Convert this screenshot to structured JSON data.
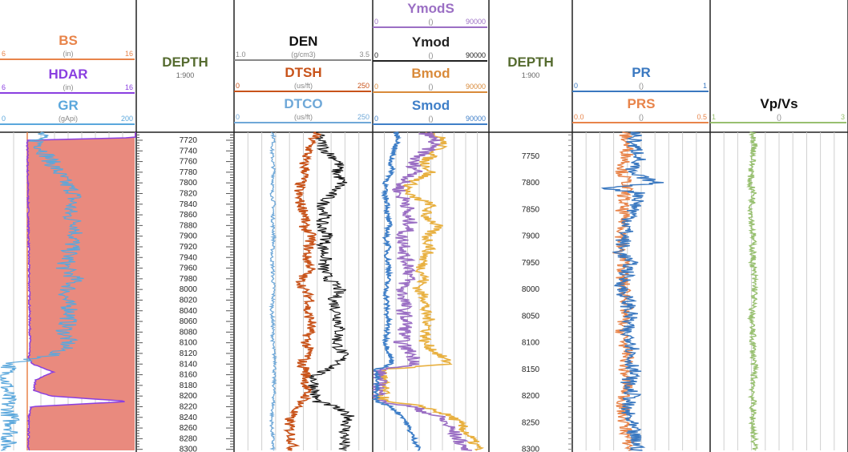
{
  "colors": {
    "bs": "#e8844a",
    "hdar": "#8a3fe0",
    "gr": "#5aa7dc",
    "den": "#111111",
    "dtsh": "#c8531a",
    "dtco": "#6fa8d8",
    "ymods": "#9b6fc4",
    "ymod": "#222222",
    "bmod": "#e8b040",
    "bmod_curve": "#d98a3a",
    "smod": "#3f7fc8",
    "depth": "#556b2f",
    "pr": "#3a78c0",
    "prs": "#e8844a",
    "vpvs": "#98c070",
    "fill": "#e98a7e"
  },
  "chart_data": {
    "type": "line",
    "title": "",
    "tracks": [
      {
        "id": "track1",
        "curves": [
          {
            "name": "BS",
            "unit": "(in)",
            "min": "6",
            "max": "16"
          },
          {
            "name": "HDAR",
            "unit": "(in)",
            "min": "6",
            "max": "16"
          },
          {
            "name": "GR",
            "unit": "(gApi)",
            "min": "0",
            "max": "200"
          }
        ]
      },
      {
        "id": "depth1",
        "label": "DEPTH",
        "scale": "1:900",
        "ticks": [
          7720,
          7740,
          7760,
          7780,
          7800,
          7820,
          7840,
          7860,
          7880,
          7900,
          7920,
          7940,
          7960,
          7980,
          8000,
          8020,
          8040,
          8060,
          8080,
          8100,
          8120,
          8140,
          8160,
          8180,
          8200,
          8220,
          8240,
          8260,
          8280,
          8300
        ]
      },
      {
        "id": "track3",
        "curves": [
          {
            "name": "DEN",
            "unit": "(g/cm3)",
            "min": "1.0",
            "max": "3.5"
          },
          {
            "name": "DTSH",
            "unit": "(us/ft)",
            "min": "0",
            "max": "250"
          },
          {
            "name": "DTCO",
            "unit": "(us/ft)",
            "min": "0",
            "max": "250"
          }
        ]
      },
      {
        "id": "track4",
        "curves": [
          {
            "name": "YmodS",
            "unit": "()",
            "min": "0",
            "max": "90000"
          },
          {
            "name": "Ymod",
            "unit": "()",
            "min": "0",
            "max": "90000"
          },
          {
            "name": "Bmod",
            "unit": "()",
            "min": "0",
            "max": "90000"
          },
          {
            "name": "Smod",
            "unit": "()",
            "min": "0",
            "max": "90000"
          }
        ]
      },
      {
        "id": "depth2",
        "label": "DEPTH",
        "scale": "1:900",
        "ticks": [
          7750,
          7800,
          7850,
          7900,
          7950,
          8000,
          8050,
          8100,
          8150,
          8200,
          8250,
          8300
        ]
      },
      {
        "id": "track6",
        "curves": [
          {
            "name": "PR",
            "unit": "()",
            "min": "0",
            "max": "1"
          },
          {
            "name": "PRS",
            "unit": "()",
            "min": "0.0",
            "max": "0.5"
          }
        ]
      },
      {
        "id": "track7",
        "curves": [
          {
            "name": "Vp/Vs",
            "unit": "()",
            "min": "1",
            "max": "3"
          }
        ]
      }
    ],
    "depth_range": [
      7705,
      8302
    ],
    "series": [
      {
        "name": "GR",
        "depth": [
          7705,
          7720,
          7740,
          7760,
          7780,
          7800,
          7820,
          7840,
          7860,
          7880,
          7900,
          7920,
          7940,
          7960,
          7980,
          8000,
          8020,
          8040,
          8060,
          8080,
          8100,
          8115,
          8125,
          8140,
          8160,
          8180,
          8200,
          8220,
          8240,
          8260,
          8280,
          8300
        ],
        "values": [
          60,
          55,
          65,
          75,
          85,
          95,
          110,
          105,
          100,
          115,
          110,
          105,
          100,
          95,
          110,
          100,
          95,
          105,
          100,
          95,
          100,
          90,
          70,
          15,
          8,
          10,
          10,
          12,
          15,
          20,
          12,
          10
        ]
      },
      {
        "name": "HDAR",
        "depth": [
          7705,
          7715,
          7720,
          8100,
          8130,
          8140,
          8155,
          8170,
          8190,
          8200,
          8210,
          8220,
          8240,
          8300
        ],
        "values": [
          16,
          16,
          8.0,
          8.2,
          8.1,
          8.4,
          9.9,
          8.6,
          8.5,
          9.8,
          15.5,
          8.3,
          8.1,
          8.1
        ]
      },
      {
        "name": "DEN",
        "depth": [
          7705,
          7720,
          7740,
          7760,
          7780,
          7800,
          7820,
          7840,
          7860,
          7880,
          7900,
          7920,
          7940,
          7960,
          7980,
          8000,
          8020,
          8040,
          8060,
          8080,
          8100,
          8120,
          8140,
          8150,
          8160,
          8180,
          8200,
          8210,
          8220,
          8240,
          8260,
          8280,
          8300
        ],
        "values": [
          2.5,
          2.55,
          2.65,
          2.9,
          2.85,
          2.95,
          2.75,
          2.6,
          2.65,
          2.55,
          2.7,
          2.6,
          2.65,
          2.6,
          2.7,
          2.9,
          2.8,
          2.85,
          2.9,
          2.9,
          2.85,
          2.95,
          2.9,
          2.7,
          2.45,
          2.45,
          2.45,
          2.5,
          2.8,
          3.1,
          3.0,
          3.0,
          2.95
        ]
      },
      {
        "name": "DTSH",
        "depth": [
          7705,
          7720,
          7740,
          7760,
          7780,
          7800,
          7820,
          7840,
          7860,
          7880,
          7900,
          7920,
          7940,
          7960,
          7980,
          8000,
          8020,
          8040,
          8060,
          8080,
          8100,
          8120,
          8140,
          8150,
          8160,
          8180,
          8200,
          8210,
          8220,
          8240,
          8260,
          8280,
          8300
        ],
        "values": [
          150,
          140,
          135,
          125,
          130,
          120,
          115,
          120,
          130,
          125,
          140,
          135,
          130,
          140,
          120,
          125,
          140,
          130,
          140,
          135,
          130,
          135,
          120,
          130,
          130,
          130,
          130,
          125,
          115,
          100,
          100,
          105,
          105
        ]
      },
      {
        "name": "DTCO",
        "depth": [
          7705,
          7720,
          7740,
          7760,
          7780,
          7800,
          7820,
          7840,
          7860,
          7880,
          7900,
          7920,
          7940,
          7960,
          7980,
          8000,
          8020,
          8040,
          8060,
          8080,
          8100,
          8120,
          8140,
          8160,
          8180,
          8200,
          8220,
          8240,
          8260,
          8280,
          8300
        ],
        "values": [
          70,
          72,
          68,
          70,
          72,
          70,
          68,
          72,
          70,
          70,
          72,
          70,
          68,
          70,
          70,
          72,
          70,
          68,
          70,
          70,
          70,
          72,
          75,
          72,
          72,
          72,
          70,
          68,
          68,
          70,
          70
        ]
      },
      {
        "name": "YmodS",
        "depth": [
          7705,
          7720,
          7740,
          7760,
          7780,
          7800,
          7820,
          7840,
          7860,
          7880,
          7900,
          7920,
          7940,
          7960,
          7980,
          8000,
          8020,
          8040,
          8060,
          8080,
          8100,
          8120,
          8140,
          8150,
          8200,
          8210,
          8220,
          8240,
          8260,
          8280,
          8300
        ],
        "values": [
          40000,
          48000,
          42000,
          30000,
          35000,
          22000,
          20000,
          28000,
          25000,
          30000,
          22000,
          26000,
          24000,
          30000,
          28000,
          22000,
          25000,
          24000,
          26000,
          25000,
          22000,
          30000,
          35000,
          5000,
          5000,
          5000,
          30000,
          52000,
          60000,
          66000,
          72000
        ]
      },
      {
        "name": "Bmod",
        "depth": [
          7705,
          7720,
          7740,
          7760,
          7780,
          7800,
          7820,
          7840,
          7860,
          7880,
          7900,
          7920,
          7940,
          7960,
          7980,
          8000,
          8020,
          8040,
          8060,
          8080,
          8100,
          8120,
          8140,
          8150,
          8200,
          8210,
          8220,
          8240,
          8260,
          8280,
          8300
        ],
        "values": [
          45000,
          55000,
          50000,
          40000,
          45000,
          30000,
          25000,
          45000,
          40000,
          50000,
          42000,
          45000,
          40000,
          38000,
          40000,
          35000,
          42000,
          40000,
          44000,
          42000,
          40000,
          50000,
          60000,
          8000,
          8000,
          8000,
          40000,
          62000,
          70000,
          76000,
          82000
        ]
      },
      {
        "name": "Smod",
        "depth": [
          7705,
          7720,
          7740,
          7760,
          7780,
          7800,
          7820,
          7840,
          7860,
          7880,
          7900,
          7920,
          7940,
          7960,
          7980,
          8000,
          8020,
          8040,
          8060,
          8080,
          8100,
          8120,
          8140,
          8150,
          8200,
          8210,
          8220,
          8240,
          8260,
          8280,
          8300
        ],
        "values": [
          18000,
          20000,
          16000,
          14000,
          15000,
          10000,
          9000,
          12000,
          11000,
          13000,
          10000,
          12000,
          11000,
          13000,
          12000,
          10000,
          11000,
          11000,
          12000,
          11000,
          10000,
          13000,
          15000,
          3000,
          3000,
          3000,
          14000,
          24000,
          28000,
          32000,
          36000
        ]
      },
      {
        "name": "PR",
        "depth": [
          7705,
          7730,
          7750,
          7780,
          7800,
          7810,
          7820,
          7850,
          7880,
          7900,
          7930,
          7950,
          7980,
          8000,
          8020,
          8050,
          8080,
          8100,
          8130,
          8150,
          8180,
          8200,
          8220,
          8250,
          8280,
          8300
        ],
        "values": [
          0.46,
          0.44,
          0.5,
          0.4,
          0.62,
          0.25,
          0.5,
          0.45,
          0.4,
          0.38,
          0.35,
          0.42,
          0.38,
          0.36,
          0.4,
          0.42,
          0.38,
          0.45,
          0.42,
          0.45,
          0.4,
          0.44,
          0.38,
          0.42,
          0.45,
          0.48
        ]
      },
      {
        "name": "PRS",
        "depth": [
          7705,
          7730,
          7750,
          7780,
          7800,
          7820,
          7850,
          7880,
          7900,
          7930,
          7950,
          7980,
          8000,
          8020,
          8050,
          8080,
          8100,
          8130,
          8150,
          8180,
          8200,
          8220,
          8250,
          8280,
          8300
        ],
        "values": [
          0.19,
          0.2,
          0.2,
          0.18,
          0.2,
          0.19,
          0.18,
          0.19,
          0.18,
          0.17,
          0.19,
          0.18,
          0.19,
          0.2,
          0.19,
          0.18,
          0.19,
          0.2,
          0.19,
          0.2,
          0.19,
          0.18,
          0.19,
          0.2,
          0.21
        ]
      },
      {
        "name": "Vp/Vs",
        "depth": [
          7705,
          7730,
          7750,
          7780,
          7800,
          7820,
          7850,
          7900,
          7950,
          8000,
          8050,
          8100,
          8150,
          8200,
          8250,
          8300
        ],
        "values": [
          1.6,
          1.65,
          1.62,
          1.6,
          1.58,
          1.63,
          1.6,
          1.62,
          1.62,
          1.65,
          1.6,
          1.62,
          1.64,
          1.62,
          1.62,
          1.65
        ]
      }
    ]
  }
}
